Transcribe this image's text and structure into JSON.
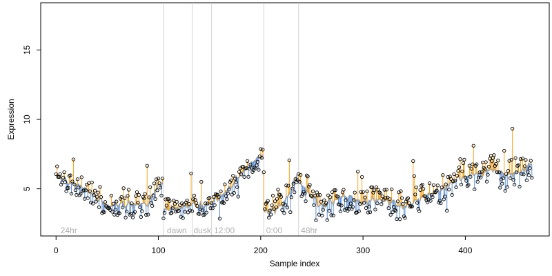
{
  "chart_data": {
    "type": "scatter",
    "title": "",
    "xlabel": "Sample index",
    "ylabel": "Expression",
    "xlim": [
      -15,
      482
    ],
    "ylim": [
      1.6,
      18.4
    ],
    "x_ticks": [
      0,
      100,
      200,
      300,
      400
    ],
    "y_ticks": [
      5,
      10,
      15
    ],
    "grid": false,
    "legend": "none",
    "colors": {
      "above_fit": "#f5a31a",
      "below_fit": "#5b8fd6",
      "fit_line": "#a9a9a9",
      "separator": "#d3d3d3",
      "annotation": "#b0b0b0",
      "point_edge": "#000000"
    },
    "vlines": [
      105,
      133,
      152,
      203,
      237
    ],
    "annotations": [
      {
        "text": "24hr",
        "x": 3
      },
      {
        "text": "dawn",
        "x": 107
      },
      {
        "text": "dusk",
        "x": 133
      },
      {
        "text": "12:00",
        "x": 153
      },
      {
        "text": "0:00",
        "x": 204
      },
      {
        "text": "48hr",
        "x": 238
      }
    ],
    "n_points": 466,
    "segments": [
      {
        "start": 0,
        "end": 104,
        "anchors": [
          [
            0,
            6.0
          ],
          [
            8,
            5.6
          ],
          [
            20,
            5.3
          ],
          [
            30,
            5.0
          ],
          [
            40,
            4.3
          ],
          [
            50,
            3.7
          ],
          [
            60,
            3.9
          ],
          [
            70,
            3.9
          ],
          [
            80,
            3.9
          ],
          [
            90,
            3.9
          ],
          [
            98,
            5.0
          ],
          [
            104,
            5.5
          ]
        ],
        "noise": 0.8,
        "seed": 11
      },
      {
        "start": 105,
        "end": 202,
        "anchors": [
          [
            105,
            3.5
          ],
          [
            120,
            3.6
          ],
          [
            133,
            3.9
          ],
          [
            140,
            3.7
          ],
          [
            152,
            4.0
          ],
          [
            160,
            4.4
          ],
          [
            170,
            5.0
          ],
          [
            180,
            6.0
          ],
          [
            190,
            6.8
          ],
          [
            202,
            7.4
          ]
        ],
        "noise": 0.7,
        "seed": 23
      },
      {
        "start": 203,
        "end": 465,
        "anchors": [
          [
            203,
            3.4
          ],
          [
            215,
            3.5
          ],
          [
            225,
            4.2
          ],
          [
            235,
            5.8
          ],
          [
            245,
            4.8
          ],
          [
            260,
            3.7
          ],
          [
            280,
            4.5
          ],
          [
            300,
            4.0
          ],
          [
            320,
            4.3
          ],
          [
            340,
            3.6
          ],
          [
            360,
            4.4
          ],
          [
            380,
            5.0
          ],
          [
            395,
            5.8
          ],
          [
            410,
            6.0
          ],
          [
            425,
            6.4
          ],
          [
            440,
            6.0
          ],
          [
            455,
            6.3
          ],
          [
            465,
            6.8
          ]
        ],
        "noise": 1.0,
        "seed": 37
      }
    ]
  }
}
